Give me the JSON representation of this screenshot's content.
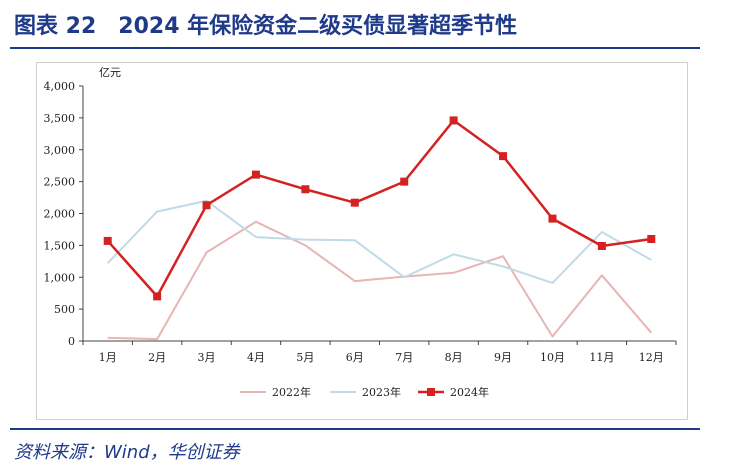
{
  "title": "图表 22　2024 年保险资金二级买债显著超季节性",
  "source": "资料来源：Wind，华创证券",
  "chart_data": {
    "type": "line",
    "unit_label": "亿元",
    "categories": [
      "1月",
      "2月",
      "3月",
      "4月",
      "5月",
      "6月",
      "7月",
      "8月",
      "9月",
      "10月",
      "11月",
      "12月"
    ],
    "ylim": [
      0,
      4000
    ],
    "yticks": [
      0,
      500,
      1000,
      1500,
      2000,
      2500,
      3000,
      3500,
      4000
    ],
    "ytick_labels": [
      "0",
      "500",
      "1,000",
      "1,500",
      "2,000",
      "2,500",
      "3,000",
      "3,500",
      "4,000"
    ],
    "grid": false,
    "legend_position": "bottom",
    "series": [
      {
        "name": "2022年",
        "color": "#e8b4b4",
        "marker": "none",
        "values": [
          50,
          30,
          1390,
          1870,
          1500,
          940,
          1010,
          1070,
          1330,
          70,
          1030,
          130
        ]
      },
      {
        "name": "2023年",
        "color": "#bfdbe6",
        "marker": "none",
        "values": [
          1220,
          2030,
          2200,
          1630,
          1590,
          1580,
          1000,
          1360,
          1170,
          910,
          1710,
          1270
        ]
      },
      {
        "name": "2024年",
        "color": "#d42222",
        "marker": "square",
        "values": [
          1570,
          700,
          2130,
          2610,
          2380,
          2170,
          2500,
          3460,
          2900,
          1920,
          1490,
          1600
        ]
      }
    ]
  }
}
